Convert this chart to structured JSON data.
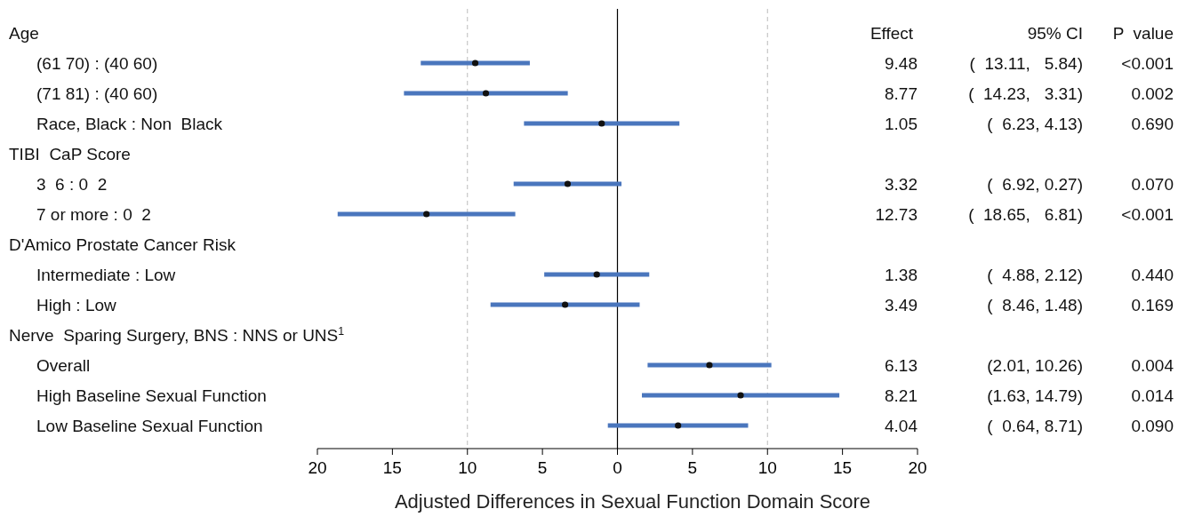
{
  "chart_data": {
    "type": "scatter",
    "orientation": "horizontal",
    "xlabel": "Adjusted Differences in Sexual Function Domain Score",
    "categories": [
      null,
      "(61 70) : (40 60)",
      "(71 81) : (40 60)",
      "Race, Black : Non  Black",
      null,
      "3  6 : 0  2",
      "7 or more : 0  2",
      null,
      "Intermediate : Low",
      "High : Low",
      null,
      "Overall",
      "High Baseline Sexual Function",
      "Low Baseline Sexual Function"
    ],
    "series": [
      {
        "color": "#111111",
        "values": [
          null,
          -9.48,
          -8.77,
          -1.05,
          null,
          -3.32,
          -12.73,
          null,
          -1.38,
          -3.49,
          null,
          6.13,
          8.21,
          4.04
        ],
        "errors": [
          null,
          [
            -13.11,
            -5.84
          ],
          [
            -14.23,
            -3.31
          ],
          [
            -6.23,
            4.13
          ],
          null,
          [
            -6.92,
            0.27
          ],
          [
            -18.65,
            -6.81
          ],
          null,
          [
            -4.88,
            2.12
          ],
          [
            -8.46,
            1.48
          ],
          null,
          [
            2.01,
            10.26
          ],
          [
            1.63,
            14.79
          ],
          [
            -0.64,
            8.71
          ]
        ]
      }
    ],
    "marker": "circle",
    "xlim": [
      -20,
      20
    ],
    "xticks": [
      {
        "value": -20,
        "label": "20"
      },
      {
        "value": -15,
        "label": "15"
      },
      {
        "value": -10,
        "label": "10"
      },
      {
        "value": -5,
        "label": "5"
      },
      0,
      5,
      10,
      15,
      20
    ],
    "ref_lines": [
      {
        "axis": "x",
        "value": -10,
        "color": "#bbbbbb",
        "line_style": "dashed"
      },
      {
        "axis": "x",
        "value": 0,
        "color": "#000000",
        "line_style": "solid"
      },
      {
        "axis": "x",
        "value": 10,
        "color": "#bbbbbb",
        "line_style": "dashed"
      }
    ],
    "annotations": [
      "Effect",
      "95% CI",
      "P  value",
      "Age",
      "TIBI  CaP Score",
      "D'Amico Prostate Cancer Risk",
      "Nerve  Sparing Surgery, BNS : NNS or UNS$^{1}$",
      "9.48",
      "(  13.11,   5.84)",
      "<0.001",
      "8.77",
      "(  14.23,   3.31)",
      "0.002",
      "1.05",
      "(  6.23, 4.13)",
      "0.690",
      "3.32",
      "(  6.92, 0.27)",
      "0.070",
      "12.73",
      "(  18.65,   6.81)",
      "<0.001",
      "1.38",
      "(  4.88, 2.12)",
      "0.440",
      "3.49",
      "(  8.46, 1.48)",
      "0.169",
      "6.13",
      "(2.01, 10.26)",
      "0.004",
      "8.21",
      "(1.63, 14.79)",
      "0.014",
      "4.04",
      "(  0.64, 8.71)",
      "0.090"
    ]
  }
}
